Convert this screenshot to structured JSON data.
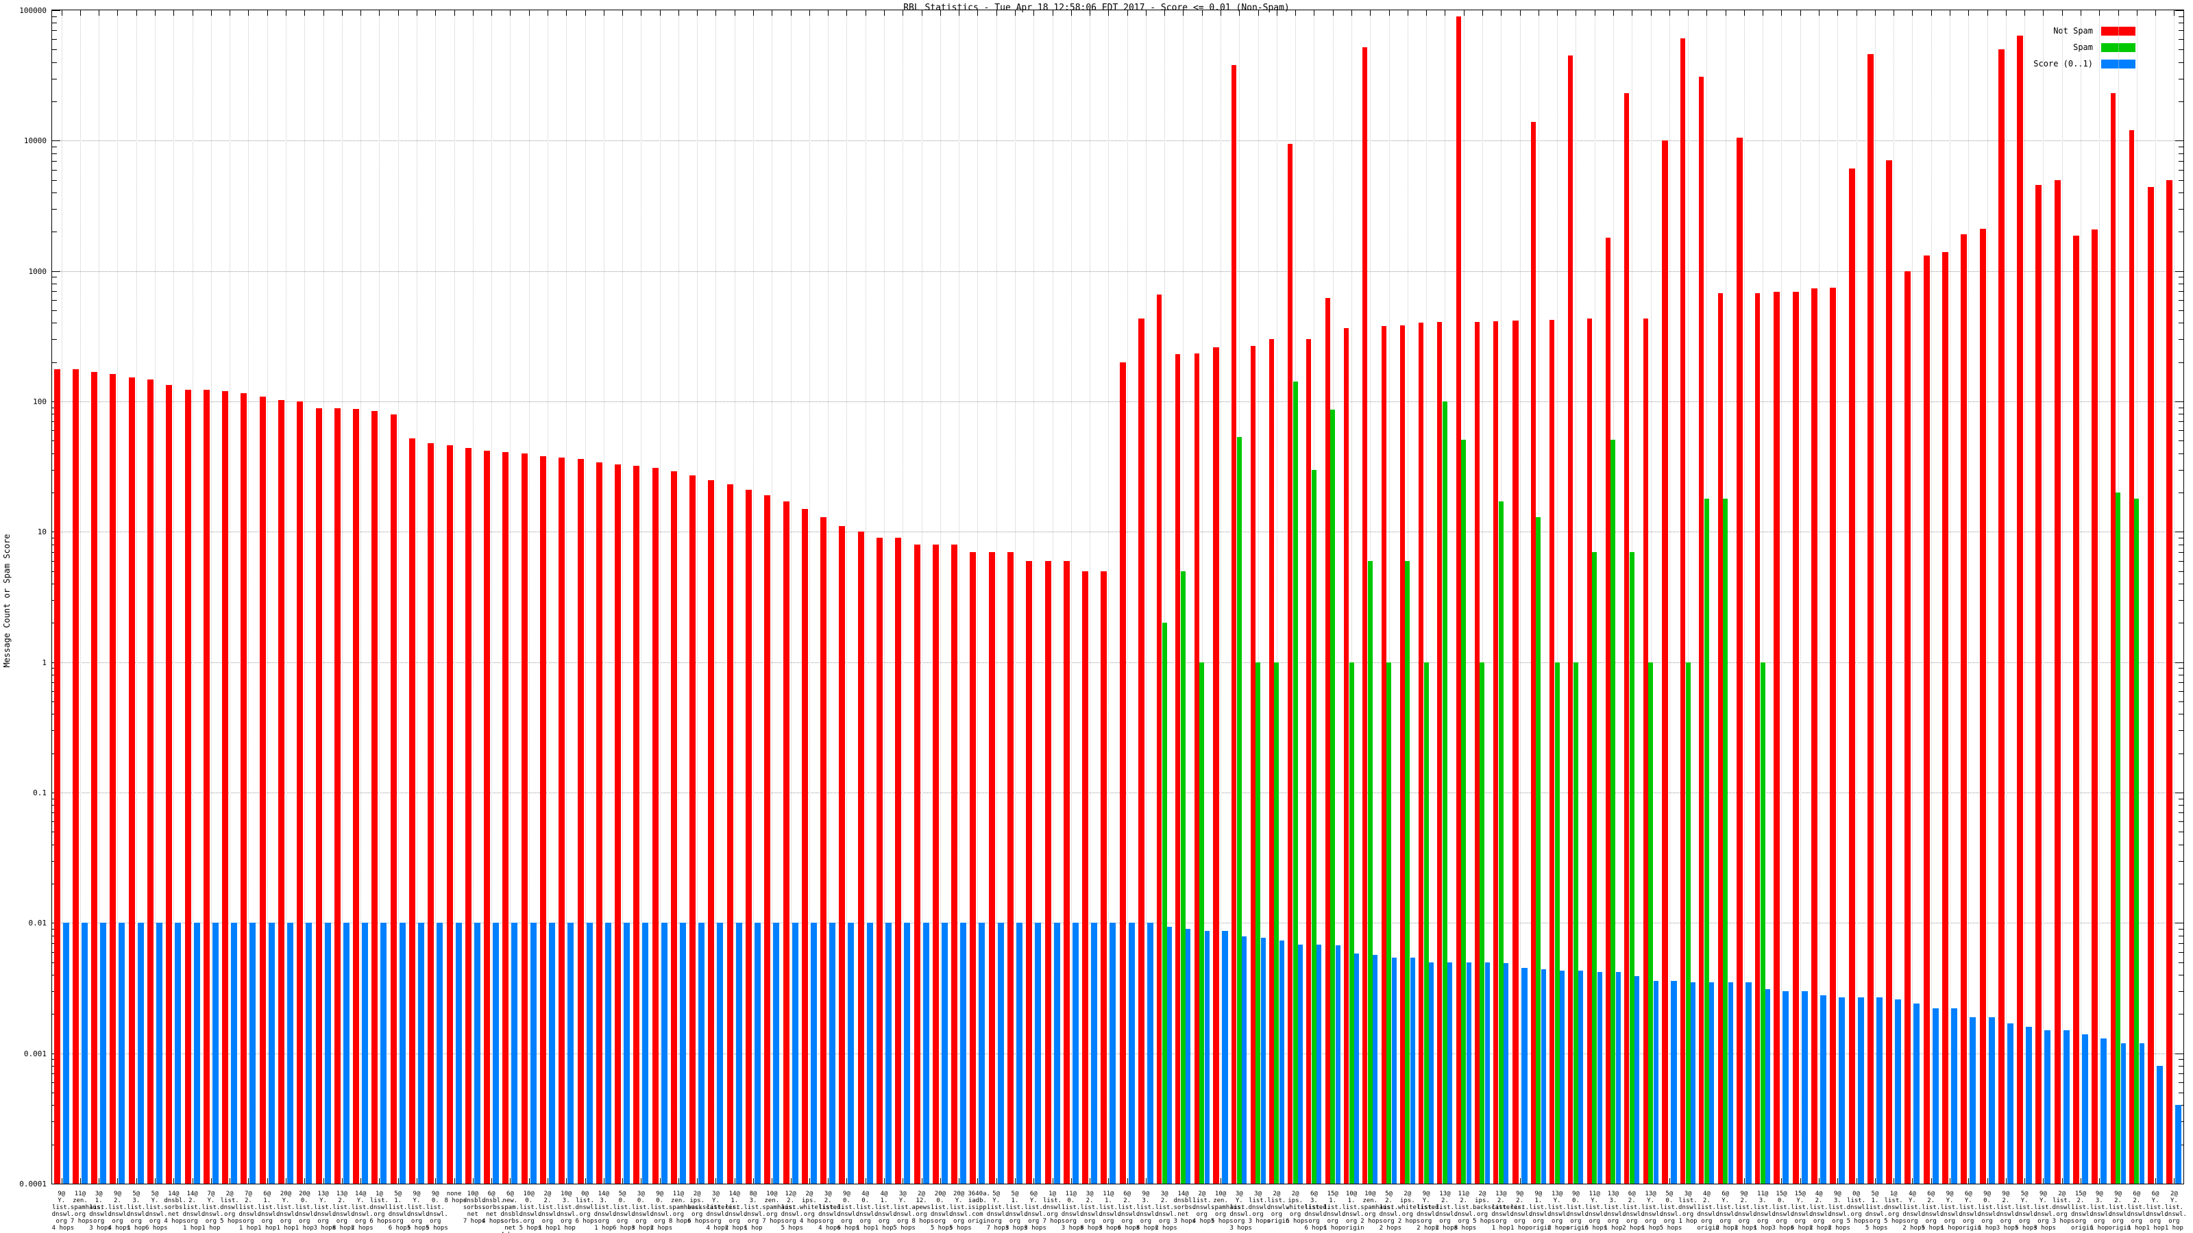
{
  "title": "RBL Statistics - Tue Apr 18 12:58:06 EDT 2017 - Score <= 0.01 (Non-Spam)",
  "y_axis": {
    "label": "Message Count or Spam Score",
    "tick_labels": [
      "100000",
      "10000",
      "1000",
      "100",
      "10",
      "1",
      "0.1",
      "0.01",
      "0.001",
      "0.0001"
    ]
  },
  "legend": [
    {
      "label": "Not Spam",
      "color": "#ff0000"
    },
    {
      "label": "Spam",
      "color": "#00c800"
    },
    {
      "label": "Score (0..1)",
      "color": "#0080ff"
    }
  ],
  "chart_data": {
    "type": "bar",
    "scale": "log",
    "ylim": [
      0.0001,
      100000
    ],
    "title": "RBL Statistics - Tue Apr 18 12:58:06 EDT 2017 - Score <= 0.01 (Non-Spam)",
    "ylabel": "Message Count or Spam Score",
    "grid": true,
    "legend_position": "top-right",
    "series_names": [
      "Not Spam",
      "Spam",
      "Score (0..1)"
    ],
    "groups": [
      {
        "label": "9@Y.list.dnswl.org 4 hops",
        "not_spam": 177,
        "spam": 0,
        "score": 0.01
      },
      {
        "label": "11@zen.spamhaus.org 7 hops",
        "not_spam": 176,
        "spam": 0,
        "score": 0.01
      },
      {
        "label": "3@1.list.dnswl.org 3 hops",
        "not_spam": 168,
        "spam": 0,
        "score": 0.01
      },
      {
        "label": "9@2.list.dnswl.org 4 hops",
        "not_spam": 162,
        "spam": 0,
        "score": 0.01
      },
      {
        "label": "5@3.list.dnswl.org 1 hop",
        "not_spam": 152,
        "spam": 0,
        "score": 0.01
      },
      {
        "label": "5@Y.list.dnswl.org 6 hops",
        "not_spam": 148,
        "spam": 0,
        "score": 0.01
      },
      {
        "label": "14@dnsbl.sorbs.net 4 hops",
        "not_spam": 134,
        "spam": 0,
        "score": 0.01
      },
      {
        "label": "14@2.list.dnswl.org 1 hop",
        "not_spam": 123,
        "spam": 0,
        "score": 0.01
      },
      {
        "label": "7@Y.list.dnswl.org 1 hop",
        "not_spam": 123,
        "spam": 0,
        "score": 0.01
      },
      {
        "label": "2@list.dnswl.org 5 hops",
        "not_spam": 120,
        "spam": 0,
        "score": 0.01
      },
      {
        "label": "7@2.list.dnswl.org 1 hop",
        "not_spam": 116,
        "spam": 0,
        "score": 0.01
      },
      {
        "label": "6@1.list.dnswl.org 1 hop",
        "not_spam": 109,
        "spam": 0,
        "score": 0.01
      },
      {
        "label": "20@Y.list.dnswl.org 1 hop",
        "not_spam": 102,
        "spam": 0,
        "score": 0.01
      },
      {
        "label": "20@0.list.dnswl.org 1 hop",
        "not_spam": 100,
        "spam": 0,
        "score": 0.01
      },
      {
        "label": "13@Y.list.dnswl.org 3 hops",
        "not_spam": 89,
        "spam": 0,
        "score": 0.01
      },
      {
        "label": "13@2.list.dnswl.org 8 hops",
        "not_spam": 89,
        "spam": 0,
        "score": 0.01
      },
      {
        "label": "14@Y.list.dnswl.org 2 hops",
        "not_spam": 88,
        "spam": 0,
        "score": 0.01
      },
      {
        "label": "1@list.dnswl.org 6 hops",
        "not_spam": 84,
        "spam": 0,
        "score": 0.01
      },
      {
        "label": "5@1.list.dnswl.org 6 hops",
        "not_spam": 79,
        "spam": 0,
        "score": 0.01
      },
      {
        "label": "9@Y.list.dnswl.org 5 hops",
        "not_spam": 52,
        "spam": 0,
        "score": 0.01
      },
      {
        "label": "9@0.list.dnswl.org 5 hops",
        "not_spam": 48,
        "spam": 0,
        "score": 0.01
      },
      {
        "label": "none 8 hops",
        "not_spam": 46,
        "spam": 0,
        "score": 0.01
      },
      {
        "label": "10@dnsbl.sorbs.net 7 hops",
        "not_spam": 44,
        "spam": 0,
        "score": 0.01
      },
      {
        "label": "6@dnsbl.sorbs.net 4 hops",
        "not_spam": 42,
        "spam": 0,
        "score": 0.01
      },
      {
        "label": "6@new.spam.dnsbl.sorbs.net 4 hops",
        "not_spam": 41,
        "spam": 0,
        "score": 0.01
      },
      {
        "label": "10@0.list.dnswl.org 5 hops",
        "not_spam": 40,
        "spam": 0,
        "score": 0.01
      },
      {
        "label": "2@2.list.dnswl.org 1 hop",
        "not_spam": 38,
        "spam": 0,
        "score": 0.01
      },
      {
        "label": "10@3.list.dnswl.org 1 hop",
        "not_spam": 37,
        "spam": 0,
        "score": 0.01
      },
      {
        "label": "0@list.dnswl.org 6 hops",
        "not_spam": 36,
        "spam": 0,
        "score": 0.01
      },
      {
        "label": "14@3.list.dnswl.org 1 hop",
        "not_spam": 34,
        "spam": 0,
        "score": 0.01
      },
      {
        "label": "5@0.list.dnswl.org 6 hops",
        "not_spam": 33,
        "spam": 0,
        "score": 0.01
      },
      {
        "label": "3@0.list.dnswl.org 3 hops",
        "not_spam": 32,
        "spam": 0,
        "score": 0.01
      },
      {
        "label": "9@0.list.dnswl.org 2 hops",
        "not_spam": 31,
        "spam": 0,
        "score": 0.01
      },
      {
        "label": "11@zen.spamhaus.org 8 hops",
        "not_spam": 29,
        "spam": 0,
        "score": 0.01
      },
      {
        "label": "2@ips.backscatterer.org 6 hops",
        "not_spam": 27,
        "spam": 0,
        "score": 0.01
      },
      {
        "label": "3@Y.list.dnswl.org 4 hops",
        "not_spam": 25,
        "spam": 0,
        "score": 0.01
      },
      {
        "label": "14@1.list.dnswl.org 2 hops",
        "not_spam": 23,
        "spam": 0,
        "score": 0.01
      },
      {
        "label": "8@3.list.dnswl.org 1 hop",
        "not_spam": 21,
        "spam": 0,
        "score": 0.01
      },
      {
        "label": "10@zen.spamhaus.org 7 hops",
        "not_spam": 19,
        "spam": 0,
        "score": 0.01
      },
      {
        "label": "12@2.list.dnswl.org 5 hops",
        "not_spam": 17,
        "spam": 0,
        "score": 0.01
      },
      {
        "label": "2@ips.whitelisted.org 4 hops",
        "not_spam": 15,
        "spam": 0,
        "score": 0.01
      },
      {
        "label": "3@2.list.dnswl.org 4 hops",
        "not_spam": 13,
        "spam": 0,
        "score": 0.01
      },
      {
        "label": "9@0.list.dnswl.org 6 hops",
        "not_spam": 11,
        "spam": 0,
        "score": 0.01
      },
      {
        "label": "4@0.list.dnswl.org 1 hop",
        "not_spam": 10,
        "spam": 0,
        "score": 0.01
      },
      {
        "label": "4@1.list.dnswl.org 1 hop",
        "not_spam": 9,
        "spam": 0,
        "score": 0.01
      },
      {
        "label": "3@Y.list.dnswl.org 5 hops",
        "not_spam": 9,
        "spam": 0,
        "score": 0.01
      },
      {
        "label": "2@12.apews.org 8 hops",
        "not_spam": 8,
        "spam": 0,
        "score": 0.01
      },
      {
        "label": "20@0.list.dnswl.org 5 hops",
        "not_spam": 8,
        "spam": 0,
        "score": 0.01
      },
      {
        "label": "20@Y.list.dnswl.org 5 hops",
        "not_spam": 8,
        "spam": 0,
        "score": 0.01
      },
      {
        "label": "3640a.iadb.isipp.com origin",
        "not_spam": 7,
        "spam": 0,
        "score": 0.01
      },
      {
        "label": "5@Y.list.dnswl.org 7 hops",
        "not_spam": 7,
        "spam": 0,
        "score": 0.01
      },
      {
        "label": "5@1.list.dnswl.org 3 hops",
        "not_spam": 7,
        "spam": 0,
        "score": 0.01
      },
      {
        "label": "6@Y.list.dnswl.org 3 hops",
        "not_spam": 6,
        "spam": 0,
        "score": 0.01
      },
      {
        "label": "1@list.dnswl.org 7 hops",
        "not_spam": 6,
        "spam": 0,
        "score": 0.01
      },
      {
        "label": "11@0.list.dnswl.org 3 hops",
        "not_spam": 6,
        "spam": 0,
        "score": 0.01
      },
      {
        "label": "3@2.list.dnswl.org 8 hops",
        "not_spam": 5,
        "spam": 0,
        "score": 0.01
      },
      {
        "label": "11@1.list.dnswl.org 3 hops",
        "not_spam": 5,
        "spam": 0,
        "score": 0.01
      },
      {
        "label": "6@2.list.dnswl.org 6 hops",
        "not_spam": 200,
        "spam": 0,
        "score": 0.01
      },
      {
        "label": "9@3.list.dnswl.org 8 hops",
        "not_spam": 430,
        "spam": 0,
        "score": 0.01
      },
      {
        "label": "3@2.list.dnswl.org 2 hops",
        "not_spam": 660,
        "spam": 2,
        "score": 0.0093
      },
      {
        "label": "14@dnsbl.sorbs.net 3 hops",
        "not_spam": 230,
        "spam": 5,
        "score": 0.009
      },
      {
        "label": "2@list.dnswl.org 4 hops",
        "not_spam": 232,
        "spam": 1,
        "score": 0.0087
      },
      {
        "label": "10@zen.spamhaus.org 5 hops",
        "not_spam": 260,
        "spam": 0,
        "score": 0.0087
      },
      {
        "label": "3@Y.list.dnswl.org 3 hops",
        "not_spam": 38000,
        "spam": 53,
        "score": 0.0079
      },
      {
        "label": "3@list.dnswl.org 3 hops",
        "not_spam": 266,
        "spam": 1,
        "score": 0.0077
      },
      {
        "label": "2@list.dnswl.org origin",
        "not_spam": 300,
        "spam": 1,
        "score": 0.0073
      },
      {
        "label": "2@ips.whitelisted.org 6 hops",
        "not_spam": 9500,
        "spam": 142,
        "score": 0.0068
      },
      {
        "label": "6@3.list.dnswl.org 6 hops",
        "not_spam": 300,
        "spam": 30,
        "score": 0.0068
      },
      {
        "label": "15@1.list.dnswl.org 1 hop",
        "not_spam": 620,
        "spam": 87,
        "score": 0.0067
      },
      {
        "label": "10@1.list.dnswl.org origin",
        "not_spam": 365,
        "spam": 1,
        "score": 0.0058
      },
      {
        "label": "10@zen.spamhaus.org 2 hops",
        "not_spam": 52000,
        "spam": 6,
        "score": 0.0057
      },
      {
        "label": "5@2.list.dnswl.org 2 hops",
        "not_spam": 380,
        "spam": 1,
        "score": 0.0054
      },
      {
        "label": "2@ips.whitelisted.org 2 hops",
        "not_spam": 385,
        "spam": 6,
        "score": 0.0054
      },
      {
        "label": "9@Y.list.dnswl.org 2 hops",
        "not_spam": 400,
        "spam": 1,
        "score": 0.005
      },
      {
        "label": "13@2.list.dnswl.org 2 hops",
        "not_spam": 405,
        "spam": 100,
        "score": 0.005
      },
      {
        "label": "11@2.list.dnswl.org 8 hops",
        "not_spam": 90000,
        "spam": 51,
        "score": 0.005
      },
      {
        "label": "2@ips.backscatterer.org 5 hops",
        "not_spam": 405,
        "spam": 1,
        "score": 0.005
      },
      {
        "label": "13@2.list.dnswl.org 1 hop",
        "not_spam": 410,
        "spam": 17,
        "score": 0.0049
      },
      {
        "label": "9@2.list.dnswl.org 1 hop",
        "not_spam": 415,
        "spam": 0,
        "score": 0.0045
      },
      {
        "label": "9@1.list.dnswl.org origin",
        "not_spam": 14000,
        "spam": 13,
        "score": 0.0044
      },
      {
        "label": "13@Y.list.dnswl.org 2 hops",
        "not_spam": 420,
        "spam": 1,
        "score": 0.0043
      },
      {
        "label": "9@0.list.dnswl.org origin",
        "not_spam": 45000,
        "spam": 1,
        "score": 0.0043
      },
      {
        "label": "11@Y.list.dnswl.org 6 hops",
        "not_spam": 430,
        "spam": 7,
        "score": 0.0042
      },
      {
        "label": "13@3.list.dnswl.org 1 hop",
        "not_spam": 1800,
        "spam": 51,
        "score": 0.0042
      },
      {
        "label": "6@2.list.dnswl.org 2 hops",
        "not_spam": 23000,
        "spam": 7,
        "score": 0.0039
      },
      {
        "label": "13@Y.list.dnswl.org 1 hop",
        "not_spam": 430,
        "spam": 1,
        "score": 0.0036
      },
      {
        "label": "5@0.list.dnswl.org 5 hops",
        "not_spam": 10000,
        "spam": 0,
        "score": 0.0036
      },
      {
        "label": "3@list.dnswl.org 1 hop",
        "not_spam": 61000,
        "spam": 1,
        "score": 0.0035
      },
      {
        "label": "4@2.list.dnswl.org origin",
        "not_spam": 31000,
        "spam": 18,
        "score": 0.0035
      },
      {
        "label": "6@Y.list.dnswl.org 2 hops",
        "not_spam": 680,
        "spam": 18,
        "score": 0.0035
      },
      {
        "label": "9@2.list.dnswl.org 2 hops",
        "not_spam": 10500,
        "spam": 0,
        "score": 0.0035
      },
      {
        "label": "11@3.list.dnswl.org 1 hop",
        "not_spam": 675,
        "spam": 1,
        "score": 0.0031
      },
      {
        "label": "15@0.list.dnswl.org 3 hops",
        "not_spam": 690,
        "spam": 0,
        "score": 0.003
      },
      {
        "label": "15@Y.list.dnswl.org 6 hops",
        "not_spam": 695,
        "spam": 0,
        "score": 0.003
      },
      {
        "label": "4@2.list.dnswl.org 2 hops",
        "not_spam": 740,
        "spam": 0,
        "score": 0.0028
      },
      {
        "label": "9@3.list.dnswl.org 2 hops",
        "not_spam": 745,
        "spam": 0,
        "score": 0.0027
      },
      {
        "label": "0@list.dnswl.org 5 hops",
        "not_spam": 6150,
        "spam": 0,
        "score": 0.0027
      },
      {
        "label": "5@1.list.dnswl.org 5 hops",
        "not_spam": 46000,
        "spam": 0,
        "score": 0.0027
      },
      {
        "label": "1@list.dnswl.org 5 hops",
        "not_spam": 7100,
        "spam": 0,
        "score": 0.0026
      },
      {
        "label": "4@Y.list.dnswl.org 2 hops",
        "not_spam": 1000,
        "spam": 0,
        "score": 0.0024
      },
      {
        "label": "6@2.list.dnswl.org 5 hops",
        "not_spam": 1320,
        "spam": 0,
        "score": 0.0022
      },
      {
        "label": "9@Y.list.dnswl.org 1 hop",
        "not_spam": 1400,
        "spam": 0,
        "score": 0.0022
      },
      {
        "label": "6@Y.list.dnswl.org origin",
        "not_spam": 1925,
        "spam": 0,
        "score": 0.0019
      },
      {
        "label": "9@0.list.dnswl.org 1 hop",
        "not_spam": 2120,
        "spam": 0,
        "score": 0.0019
      },
      {
        "label": "9@2.list.dnswl.org 3 hops",
        "not_spam": 50000,
        "spam": 0,
        "score": 0.0017
      },
      {
        "label": "5@Y.list.dnswl.org 5 hops",
        "not_spam": 64000,
        "spam": 0,
        "score": 0.0016
      },
      {
        "label": "9@Y.list.dnswl.org 3 hops",
        "not_spam": 4600,
        "spam": 0,
        "score": 0.0015
      },
      {
        "label": "2@list.dnswl.org 3 hops",
        "not_spam": 5000,
        "spam": 0,
        "score": 0.0015
      },
      {
        "label": "15@2.list.dnswl.org origin",
        "not_spam": 1860,
        "spam": 0,
        "score": 0.0014
      },
      {
        "label": "9@3.list.dnswl.org 1 hop",
        "not_spam": 2080,
        "spam": 0,
        "score": 0.0013
      },
      {
        "label": "9@2.list.dnswl.org origin",
        "not_spam": 23000,
        "spam": 20,
        "score": 0.0012
      },
      {
        "label": "6@2.list.dnswl.org 1 hop",
        "not_spam": 12000,
        "spam": 18,
        "score": 0.0012
      },
      {
        "label": "6@Y.list.dnswl.org 1 hop",
        "not_spam": 4400,
        "spam": 0,
        "score": 0.0008
      },
      {
        "label": "2@Y.list.dnswl.org 1 hop",
        "not_spam": 4950,
        "spam": 0,
        "score": 0.0004
      }
    ]
  }
}
